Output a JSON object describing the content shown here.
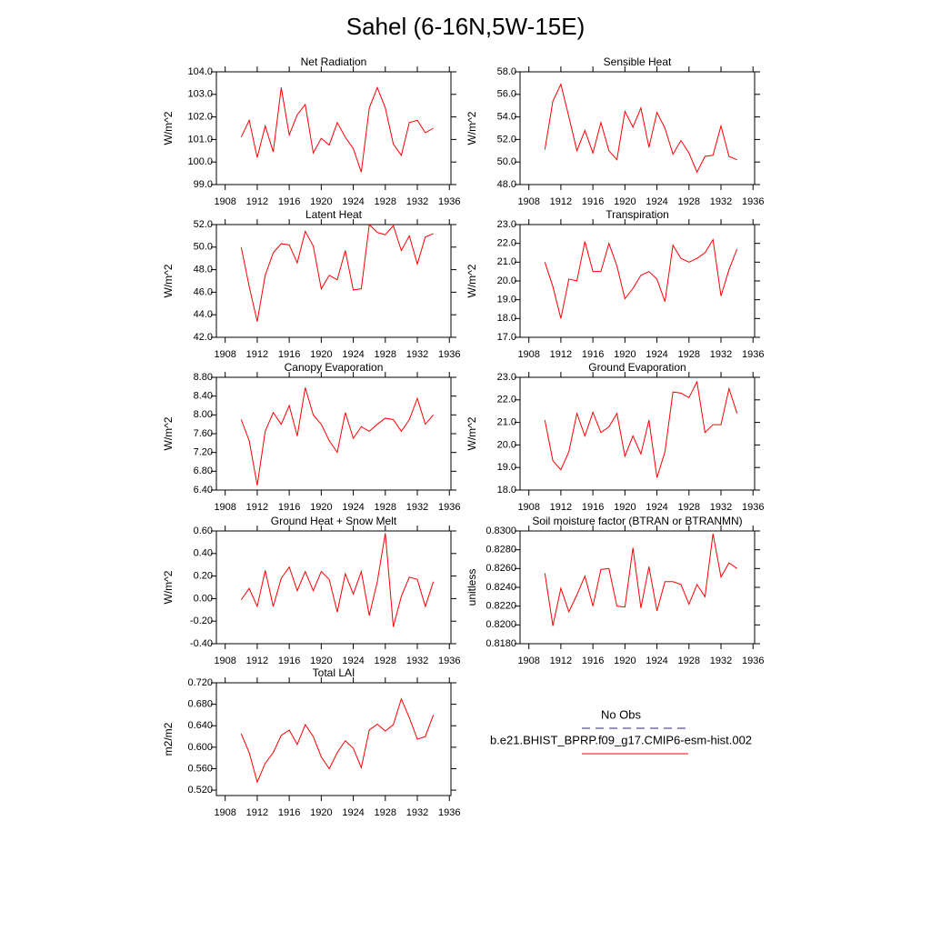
{
  "title": "Sahel (6-16N,5W-15E)",
  "legend": [
    {
      "name": "No Obs",
      "color": "#2b2b7a",
      "dash": true
    },
    {
      "name": "b.e21.BHIST_BPRP.f09_g17.CMIP6-esm-hist.002",
      "color": "#ff0000",
      "dash": false
    }
  ],
  "chart_data": [
    {
      "type": "line",
      "title": "Net Radiation",
      "ylabel": "W/m^2",
      "color": "#ff0000",
      "x": [
        1910,
        1911,
        1912,
        1913,
        1914,
        1915,
        1916,
        1917,
        1918,
        1919,
        1920,
        1921,
        1922,
        1923,
        1924,
        1925,
        1926,
        1927,
        1928,
        1929,
        1930,
        1931,
        1932,
        1933,
        1934
      ],
      "values": [
        101.1,
        101.85,
        100.2,
        101.6,
        100.45,
        103.3,
        101.2,
        102.1,
        102.55,
        100.4,
        101.05,
        100.75,
        101.75,
        101.1,
        100.6,
        99.55,
        102.4,
        103.3,
        102.4,
        100.8,
        100.3,
        101.75,
        101.85,
        101.3,
        101.5
      ],
      "xlim": [
        1906.9,
        1936.2
      ],
      "xticks": [
        1908,
        1912,
        1916,
        1920,
        1924,
        1928,
        1932,
        1936
      ],
      "ylim": [
        99,
        104
      ],
      "yticks": [
        {
          "value": 99,
          "label": "99.0"
        },
        {
          "value": 100,
          "label": "100.0"
        },
        {
          "value": 101,
          "label": "101.0"
        },
        {
          "value": 102,
          "label": "102.0"
        },
        {
          "value": 103,
          "label": "103.0"
        },
        {
          "value": 104,
          "label": "104.0"
        }
      ]
    },
    {
      "type": "line",
      "title": "Sensible Heat",
      "ylabel": "W/m^2",
      "color": "#ff0000",
      "x": [
        1910,
        1911,
        1912,
        1913,
        1914,
        1915,
        1916,
        1917,
        1918,
        1919,
        1920,
        1921,
        1922,
        1923,
        1924,
        1925,
        1926,
        1927,
        1928,
        1929,
        1930,
        1931,
        1932,
        1933,
        1934
      ],
      "values": [
        51.1,
        55.4,
        56.9,
        54.0,
        51.0,
        52.8,
        50.8,
        53.5,
        51.0,
        50.2,
        54.5,
        53.1,
        54.8,
        51.3,
        54.4,
        53.0,
        50.7,
        51.9,
        50.8,
        49.1,
        50.5,
        50.6,
        53.2,
        50.5,
        50.2
      ],
      "xlim": [
        1906.9,
        1936.2
      ],
      "xticks": [
        1908,
        1912,
        1916,
        1920,
        1924,
        1928,
        1932,
        1936
      ],
      "ylim": [
        48,
        58
      ],
      "yticks": [
        {
          "value": 48,
          "label": "48.0"
        },
        {
          "value": 50,
          "label": "50.0"
        },
        {
          "value": 52,
          "label": "52.0"
        },
        {
          "value": 54,
          "label": "54.0"
        },
        {
          "value": 56,
          "label": "56.0"
        },
        {
          "value": 58,
          "label": "58.0"
        }
      ]
    },
    {
      "type": "line",
      "title": "Latent Heat",
      "ylabel": "W/m^2",
      "color": "#ff0000",
      "x": [
        1910,
        1911,
        1912,
        1913,
        1914,
        1915,
        1916,
        1917,
        1918,
        1919,
        1920,
        1921,
        1922,
        1923,
        1924,
        1925,
        1926,
        1927,
        1928,
        1929,
        1930,
        1931,
        1932,
        1933,
        1934
      ],
      "values": [
        50.0,
        46.5,
        43.4,
        47.5,
        49.5,
        50.3,
        50.2,
        48.6,
        51.4,
        50.1,
        46.3,
        47.5,
        47.1,
        49.7,
        46.2,
        46.3,
        52.0,
        51.3,
        51.1,
        51.9,
        49.7,
        51.0,
        48.5,
        50.9,
        51.2
      ],
      "xlim": [
        1906.9,
        1936.2
      ],
      "xticks": [
        1908,
        1912,
        1916,
        1920,
        1924,
        1928,
        1932,
        1936
      ],
      "ylim": [
        42,
        52
      ],
      "yticks": [
        {
          "value": 42,
          "label": "42.0"
        },
        {
          "value": 44,
          "label": "44.0"
        },
        {
          "value": 46,
          "label": "46.0"
        },
        {
          "value": 48,
          "label": "48.0"
        },
        {
          "value": 50,
          "label": "50.0"
        },
        {
          "value": 52,
          "label": "52.0"
        }
      ]
    },
    {
      "type": "line",
      "title": "Transpiration",
      "ylabel": "W/m^2",
      "color": "#ff0000",
      "x": [
        1910,
        1911,
        1912,
        1913,
        1914,
        1915,
        1916,
        1917,
        1918,
        1919,
        1920,
        1921,
        1922,
        1923,
        1924,
        1925,
        1926,
        1927,
        1928,
        1929,
        1930,
        1931,
        1932,
        1933,
        1934
      ],
      "values": [
        21.0,
        19.7,
        18.0,
        20.1,
        20.0,
        22.1,
        20.5,
        20.5,
        22.0,
        20.8,
        19.05,
        19.6,
        20.3,
        20.5,
        20.1,
        18.9,
        21.9,
        21.2,
        21.0,
        21.2,
        21.5,
        22.2,
        19.2,
        20.6,
        21.7
      ],
      "xlim": [
        1906.9,
        1936.2
      ],
      "xticks": [
        1908,
        1912,
        1916,
        1920,
        1924,
        1928,
        1932,
        1936
      ],
      "ylim": [
        17,
        23
      ],
      "yticks": [
        {
          "value": 17,
          "label": "17.0"
        },
        {
          "value": 18,
          "label": "18.0"
        },
        {
          "value": 19,
          "label": "19.0"
        },
        {
          "value": 20,
          "label": "20.0"
        },
        {
          "value": 21,
          "label": "21.0"
        },
        {
          "value": 22,
          "label": "22.0"
        },
        {
          "value": 23,
          "label": "23.0"
        }
      ]
    },
    {
      "type": "line",
      "title": "Canopy Evaporation",
      "ylabel": "W/m^2",
      "color": "#ff0000",
      "x": [
        1910,
        1911,
        1912,
        1913,
        1914,
        1915,
        1916,
        1917,
        1918,
        1919,
        1920,
        1921,
        1922,
        1923,
        1924,
        1925,
        1926,
        1927,
        1928,
        1929,
        1930,
        1931,
        1932,
        1933,
        1934
      ],
      "values": [
        7.9,
        7.45,
        6.5,
        7.65,
        8.05,
        7.8,
        8.2,
        7.55,
        8.58,
        8.0,
        7.8,
        7.45,
        7.2,
        8.05,
        7.5,
        7.75,
        7.65,
        7.8,
        7.93,
        7.9,
        7.65,
        7.9,
        8.35,
        7.8,
        8.0
      ],
      "xlim": [
        1906.9,
        1936.2
      ],
      "xticks": [
        1908,
        1912,
        1916,
        1920,
        1924,
        1928,
        1932,
        1936
      ],
      "ylim": [
        6.4,
        8.8
      ],
      "yticks": [
        {
          "value": 6.4,
          "label": "6.40"
        },
        {
          "value": 6.8,
          "label": "6.80"
        },
        {
          "value": 7.2,
          "label": "7.20"
        },
        {
          "value": 7.6,
          "label": "7.60"
        },
        {
          "value": 8.0,
          "label": "8.00"
        },
        {
          "value": 8.4,
          "label": "8.40"
        },
        {
          "value": 8.8,
          "label": "8.80"
        }
      ]
    },
    {
      "type": "line",
      "title": "Ground Evaporation",
      "ylabel": "W/m^2",
      "color": "#ff0000",
      "x": [
        1910,
        1911,
        1912,
        1913,
        1914,
        1915,
        1916,
        1917,
        1918,
        1919,
        1920,
        1921,
        1922,
        1923,
        1924,
        1925,
        1926,
        1927,
        1928,
        1929,
        1930,
        1931,
        1932,
        1933,
        1934
      ],
      "values": [
        21.1,
        19.3,
        18.9,
        19.7,
        21.4,
        20.4,
        21.45,
        20.55,
        20.8,
        21.4,
        19.5,
        20.4,
        19.6,
        21.1,
        18.55,
        19.7,
        22.35,
        22.3,
        22.1,
        22.8,
        20.55,
        20.9,
        20.9,
        22.5,
        21.4
      ],
      "xlim": [
        1906.9,
        1936.2
      ],
      "xticks": [
        1908,
        1912,
        1916,
        1920,
        1924,
        1928,
        1932,
        1936
      ],
      "ylim": [
        18,
        23
      ],
      "yticks": [
        {
          "value": 18,
          "label": "18.0"
        },
        {
          "value": 19,
          "label": "19.0"
        },
        {
          "value": 20,
          "label": "20.0"
        },
        {
          "value": 21,
          "label": "21.0"
        },
        {
          "value": 22,
          "label": "22.0"
        },
        {
          "value": 23,
          "label": "23.0"
        }
      ]
    },
    {
      "type": "line",
      "title": "Ground Heat + Snow Melt",
      "ylabel": "W/m^2",
      "color": "#ff0000",
      "x": [
        1910,
        1911,
        1912,
        1913,
        1914,
        1915,
        1916,
        1917,
        1918,
        1919,
        1920,
        1921,
        1922,
        1923,
        1924,
        1925,
        1926,
        1927,
        1928,
        1929,
        1930,
        1931,
        1932,
        1933,
        1934
      ],
      "values": [
        -0.01,
        0.09,
        -0.07,
        0.25,
        -0.07,
        0.18,
        0.28,
        0.07,
        0.24,
        0.07,
        0.24,
        0.17,
        -0.12,
        0.22,
        0.04,
        0.24,
        -0.15,
        0.15,
        0.58,
        -0.25,
        0.02,
        0.19,
        0.17,
        -0.07,
        0.15
      ],
      "xlim": [
        1906.9,
        1936.2
      ],
      "xticks": [
        1908,
        1912,
        1916,
        1920,
        1924,
        1928,
        1932,
        1936
      ],
      "ylim": [
        -0.4,
        0.6
      ],
      "yticks": [
        {
          "value": -0.4,
          "label": "-0.40"
        },
        {
          "value": -0.2,
          "label": "-0.20"
        },
        {
          "value": 0,
          "label": "0.00"
        },
        {
          "value": 0.2,
          "label": "0.20"
        },
        {
          "value": 0.4,
          "label": "0.40"
        },
        {
          "value": 0.6,
          "label": "0.60"
        }
      ]
    },
    {
      "type": "line",
      "title": "Soil moisture factor (BTRAN or BTRANMN)",
      "ylabel": "unitless",
      "color": "#ff0000",
      "x": [
        1910,
        1911,
        1912,
        1913,
        1914,
        1915,
        1916,
        1917,
        1918,
        1919,
        1920,
        1921,
        1922,
        1923,
        1924,
        1925,
        1926,
        1927,
        1928,
        1929,
        1930,
        1931,
        1932,
        1933,
        1934
      ],
      "values": [
        0.8255,
        0.8199,
        0.8239,
        0.8214,
        0.8232,
        0.8252,
        0.822,
        0.8259,
        0.826,
        0.822,
        0.8219,
        0.8282,
        0.8218,
        0.8262,
        0.8215,
        0.8246,
        0.8246,
        0.8243,
        0.8222,
        0.8243,
        0.823,
        0.8297,
        0.8251,
        0.8266,
        0.826
      ],
      "xlim": [
        1906.9,
        1936.2
      ],
      "xticks": [
        1908,
        1912,
        1916,
        1920,
        1924,
        1928,
        1932,
        1936
      ],
      "ylim": [
        0.818,
        0.83
      ],
      "yticks": [
        {
          "value": 0.818,
          "label": "0.8180"
        },
        {
          "value": 0.82,
          "label": "0.8200"
        },
        {
          "value": 0.822,
          "label": "0.8220"
        },
        {
          "value": 0.824,
          "label": "0.8240"
        },
        {
          "value": 0.826,
          "label": "0.8260"
        },
        {
          "value": 0.828,
          "label": "0.8280"
        },
        {
          "value": 0.83,
          "label": "0.8300"
        }
      ]
    },
    {
      "type": "line",
      "title": "Total LAI",
      "ylabel": "m2/m2",
      "color": "#ff0000",
      "x": [
        1910,
        1911,
        1912,
        1913,
        1914,
        1915,
        1916,
        1917,
        1918,
        1919,
        1920,
        1921,
        1922,
        1923,
        1924,
        1925,
        1926,
        1927,
        1928,
        1929,
        1930,
        1931,
        1932,
        1933,
        1934
      ],
      "values": [
        0.625,
        0.59,
        0.535,
        0.57,
        0.59,
        0.622,
        0.632,
        0.605,
        0.642,
        0.62,
        0.582,
        0.56,
        0.59,
        0.612,
        0.598,
        0.562,
        0.632,
        0.643,
        0.63,
        0.642,
        0.69,
        0.655,
        0.615,
        0.62,
        0.66
      ],
      "xlim": [
        1906.9,
        1936.2
      ],
      "xticks": [
        1908,
        1912,
        1916,
        1920,
        1924,
        1928,
        1932,
        1936
      ],
      "ylim": [
        0.51,
        0.72
      ],
      "yticks": [
        {
          "value": 0.52,
          "label": "0.520"
        },
        {
          "value": 0.56,
          "label": "0.560"
        },
        {
          "value": 0.6,
          "label": "0.600"
        },
        {
          "value": 0.64,
          "label": "0.640"
        },
        {
          "value": 0.68,
          "label": "0.680"
        },
        {
          "value": 0.72,
          "label": "0.720"
        }
      ]
    }
  ]
}
